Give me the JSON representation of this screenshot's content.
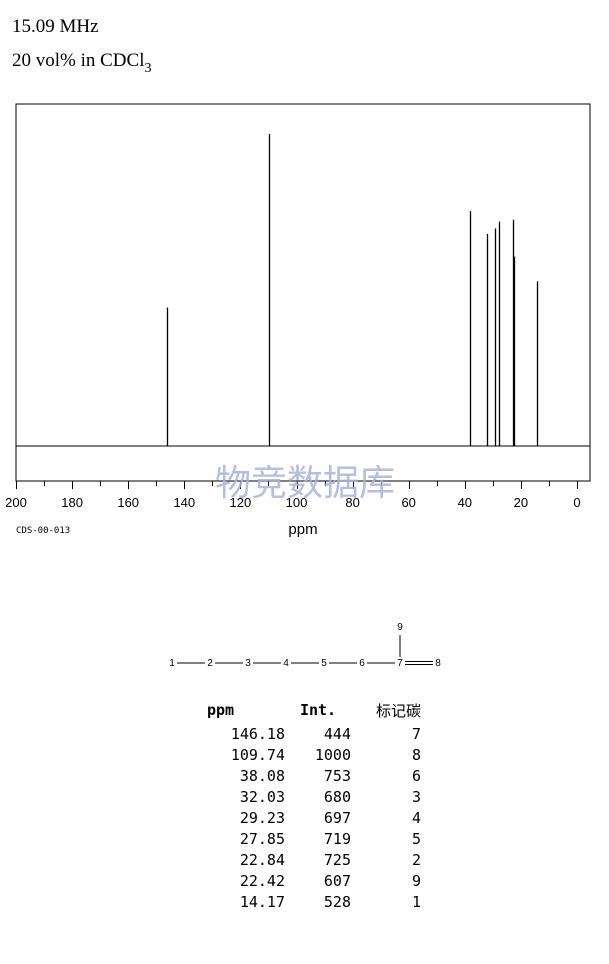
{
  "header": {
    "freq": "15.09 MHz",
    "solvent_prefix": "20 vol% in CDCl",
    "solvent_sub": "3"
  },
  "code": "CDS-00-013",
  "watermark": "物竞数据库",
  "chart_data": {
    "type": "bar",
    "title": "",
    "xlabel": "ppm",
    "ylabel": "",
    "xlim": [
      200,
      0
    ],
    "x_ticks": [
      "200",
      "180",
      "160",
      "140",
      "120",
      "100",
      "80",
      "60",
      "40",
      "20",
      "0"
    ],
    "ylim": [
      0,
      1000
    ],
    "grid": false,
    "peaks": [
      {
        "ppm": 146.18,
        "intensity": 444
      },
      {
        "ppm": 109.74,
        "intensity": 1000
      },
      {
        "ppm": 38.08,
        "intensity": 753
      },
      {
        "ppm": 32.03,
        "intensity": 680
      },
      {
        "ppm": 29.23,
        "intensity": 697
      },
      {
        "ppm": 27.85,
        "intensity": 719
      },
      {
        "ppm": 22.84,
        "intensity": 725
      },
      {
        "ppm": 22.42,
        "intensity": 607
      },
      {
        "ppm": 14.17,
        "intensity": 528
      }
    ]
  },
  "structure": {
    "chain": [
      "1",
      "2",
      "3",
      "4",
      "5",
      "6",
      "7"
    ],
    "double_bond_atom": "8",
    "branch_atom": "9"
  },
  "table": {
    "headers": [
      "ppm",
      "Int.",
      "标记碳"
    ],
    "rows": [
      [
        "146.18",
        "444",
        "7"
      ],
      [
        "109.74",
        "1000",
        "8"
      ],
      [
        "38.08",
        "753",
        "6"
      ],
      [
        "32.03",
        "680",
        "3"
      ],
      [
        "29.23",
        "697",
        "4"
      ],
      [
        "27.85",
        "719",
        "5"
      ],
      [
        "22.84",
        "725",
        "2"
      ],
      [
        "22.42",
        "607",
        "9"
      ],
      [
        "14.17",
        "528",
        "1"
      ]
    ]
  }
}
